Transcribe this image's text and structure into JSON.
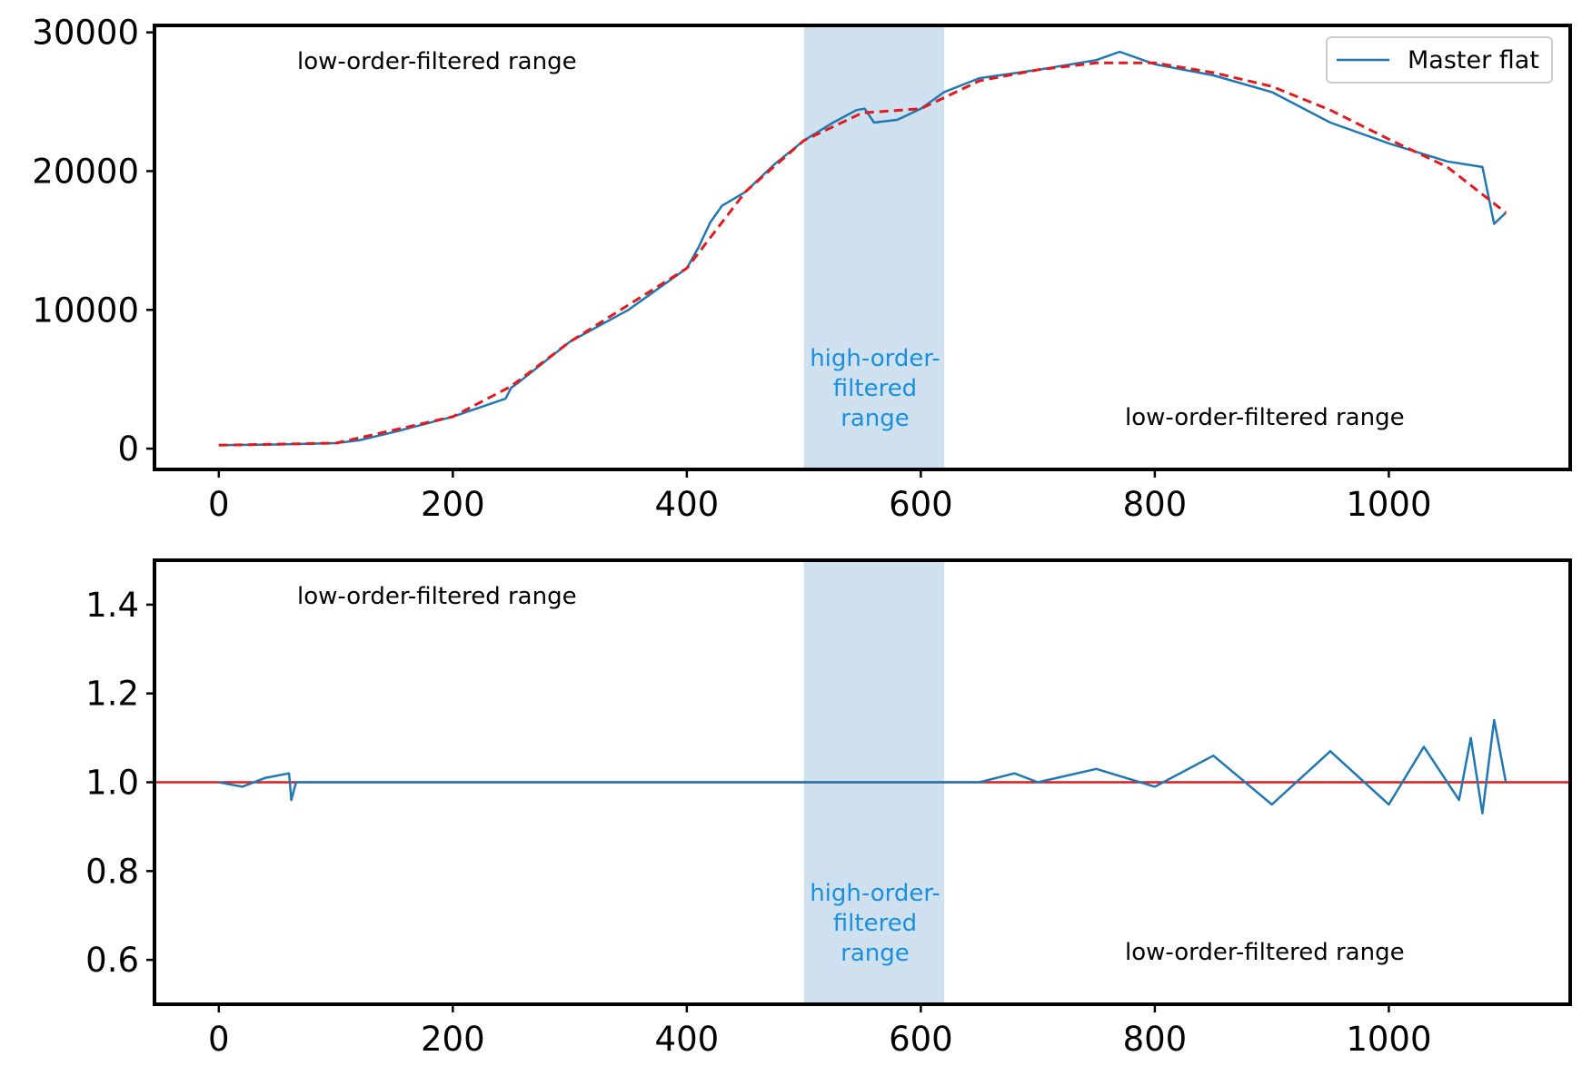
{
  "colors": {
    "data": "#1f77b4",
    "fit": "#e31a1c",
    "band": "#cfe1ef",
    "highlight_text": "#1a8fe0"
  },
  "chart_data": [
    {
      "type": "line",
      "panel": "top",
      "xlim": [
        -55,
        1155
      ],
      "ylim": [
        -1500,
        30500
      ],
      "xticks": [
        0,
        200,
        400,
        600,
        800,
        1000
      ],
      "xtick_labels": [
        "0",
        "200",
        "400",
        "600",
        "800",
        "1000"
      ],
      "yticks": [
        0,
        10000,
        20000,
        30000
      ],
      "ytick_labels": [
        "0",
        "10000",
        "20000",
        "30000"
      ],
      "grid": false,
      "legend": {
        "placement": "top-right",
        "entries": [
          "Master flat"
        ]
      },
      "shaded_region": [
        500,
        620
      ],
      "annotations": {
        "left": "low-order-filtered range",
        "middle": [
          "high-order-",
          "filtered",
          "range"
        ],
        "right": "low-order-filtered range"
      },
      "series": [
        {
          "name": "Master flat",
          "style": "solid",
          "x": [
            0,
            50,
            100,
            120,
            150,
            200,
            245,
            250,
            255,
            300,
            350,
            400,
            410,
            420,
            430,
            450,
            475,
            500,
            525,
            545,
            552,
            560,
            580,
            600,
            620,
            650,
            700,
            750,
            770,
            800,
            850,
            900,
            950,
            1000,
            1050,
            1080,
            1090,
            1100
          ],
          "y": [
            250,
            300,
            400,
            600,
            1200,
            2300,
            3600,
            4400,
            4700,
            7700,
            10000,
            13000,
            14500,
            16300,
            17500,
            18500,
            20500,
            22200,
            23500,
            24400,
            24500,
            23500,
            23700,
            24500,
            25700,
            26700,
            27300,
            28000,
            28600,
            27700,
            26900,
            25700,
            23500,
            22000,
            20700,
            20300,
            16200,
            17000
          ]
        },
        {
          "name": "",
          "style": "dashed",
          "x": [
            0,
            100,
            200,
            250,
            300,
            400,
            450,
            500,
            550,
            600,
            650,
            700,
            750,
            800,
            850,
            900,
            950,
            1000,
            1050,
            1100
          ],
          "y": [
            250,
            400,
            2300,
            4500,
            7700,
            13000,
            18500,
            22200,
            24200,
            24500,
            26500,
            27300,
            27800,
            27800,
            27100,
            26100,
            24400,
            22300,
            20300,
            17000
          ]
        }
      ]
    },
    {
      "type": "line",
      "panel": "bottom",
      "xlim": [
        -55,
        1155
      ],
      "ylim": [
        0.5,
        1.5
      ],
      "xticks": [
        0,
        200,
        400,
        600,
        800,
        1000
      ],
      "xtick_labels": [
        "0",
        "200",
        "400",
        "600",
        "800",
        "1000"
      ],
      "yticks": [
        0.6,
        0.8,
        1.0,
        1.2,
        1.4
      ],
      "ytick_labels": [
        "0.6",
        "0.8",
        "1.0",
        "1.2",
        "1.4"
      ],
      "grid": false,
      "reference_line": 1.0,
      "shaded_region": [
        500,
        620
      ],
      "annotations": {
        "left": "low-order-filtered range",
        "middle": [
          "high-order-",
          "filtered",
          "range"
        ],
        "right": "low-order-filtered range"
      },
      "series": [
        {
          "name": "",
          "style": "solid",
          "x": [
            0,
            20,
            40,
            60,
            62,
            66,
            100,
            200,
            300,
            400,
            500,
            600,
            650,
            680,
            700,
            750,
            800,
            850,
            900,
            950,
            1000,
            1030,
            1060,
            1070,
            1080,
            1090,
            1100
          ],
          "y": [
            1.0,
            0.99,
            1.01,
            1.02,
            0.96,
            1.0,
            1.0,
            1.0,
            1.0,
            1.0,
            1.0,
            1.0,
            1.0,
            1.02,
            1.0,
            1.03,
            0.99,
            1.06,
            0.95,
            1.07,
            0.95,
            1.08,
            0.96,
            1.1,
            0.93,
            1.14,
            1.0
          ]
        }
      ]
    }
  ]
}
